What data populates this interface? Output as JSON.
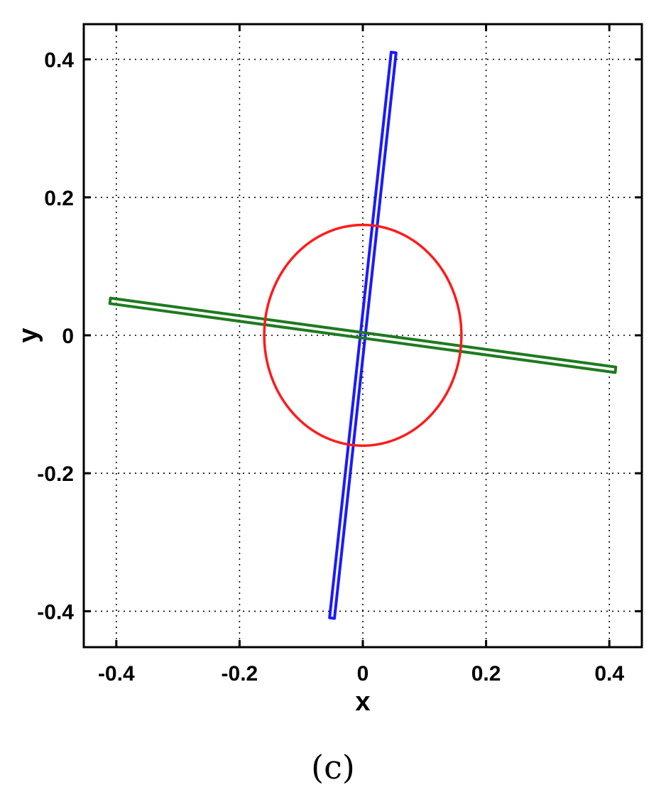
{
  "chart_data": {
    "type": "line",
    "xlabel": "x",
    "ylabel": "y",
    "panel_label": "(c)",
    "xlim": [
      -0.45,
      0.45
    ],
    "ylim": [
      -0.45,
      0.45
    ],
    "xticks": [
      -0.4,
      -0.2,
      0,
      0.2,
      0.4
    ],
    "yticks": [
      -0.4,
      -0.2,
      0,
      0.2,
      0.4
    ],
    "xtick_labels": [
      "-0.4",
      "-0.2",
      "0",
      "0.2",
      "0.4"
    ],
    "ytick_labels": [
      "-0.4",
      "-0.2",
      "0",
      "0.2",
      "0.4"
    ],
    "grid": true,
    "grid_style": "dotted",
    "series": [
      {
        "color": "#1a1aff",
        "shape": "thin closed loop along a line",
        "end_a": [
          0.05,
          0.41
        ],
        "end_b": [
          -0.05,
          -0.41
        ],
        "half_width": 0.004
      },
      {
        "color": "#1f7a1f",
        "shape": "thin closed loop along a line",
        "end_a": [
          -0.41,
          0.05
        ],
        "end_b": [
          0.41,
          -0.05
        ],
        "half_width": 0.004
      },
      {
        "color": "#ff1a1a",
        "shape": "circle",
        "center": [
          0,
          0
        ],
        "radius_x": 0.16,
        "radius_y": 0.16
      }
    ]
  }
}
